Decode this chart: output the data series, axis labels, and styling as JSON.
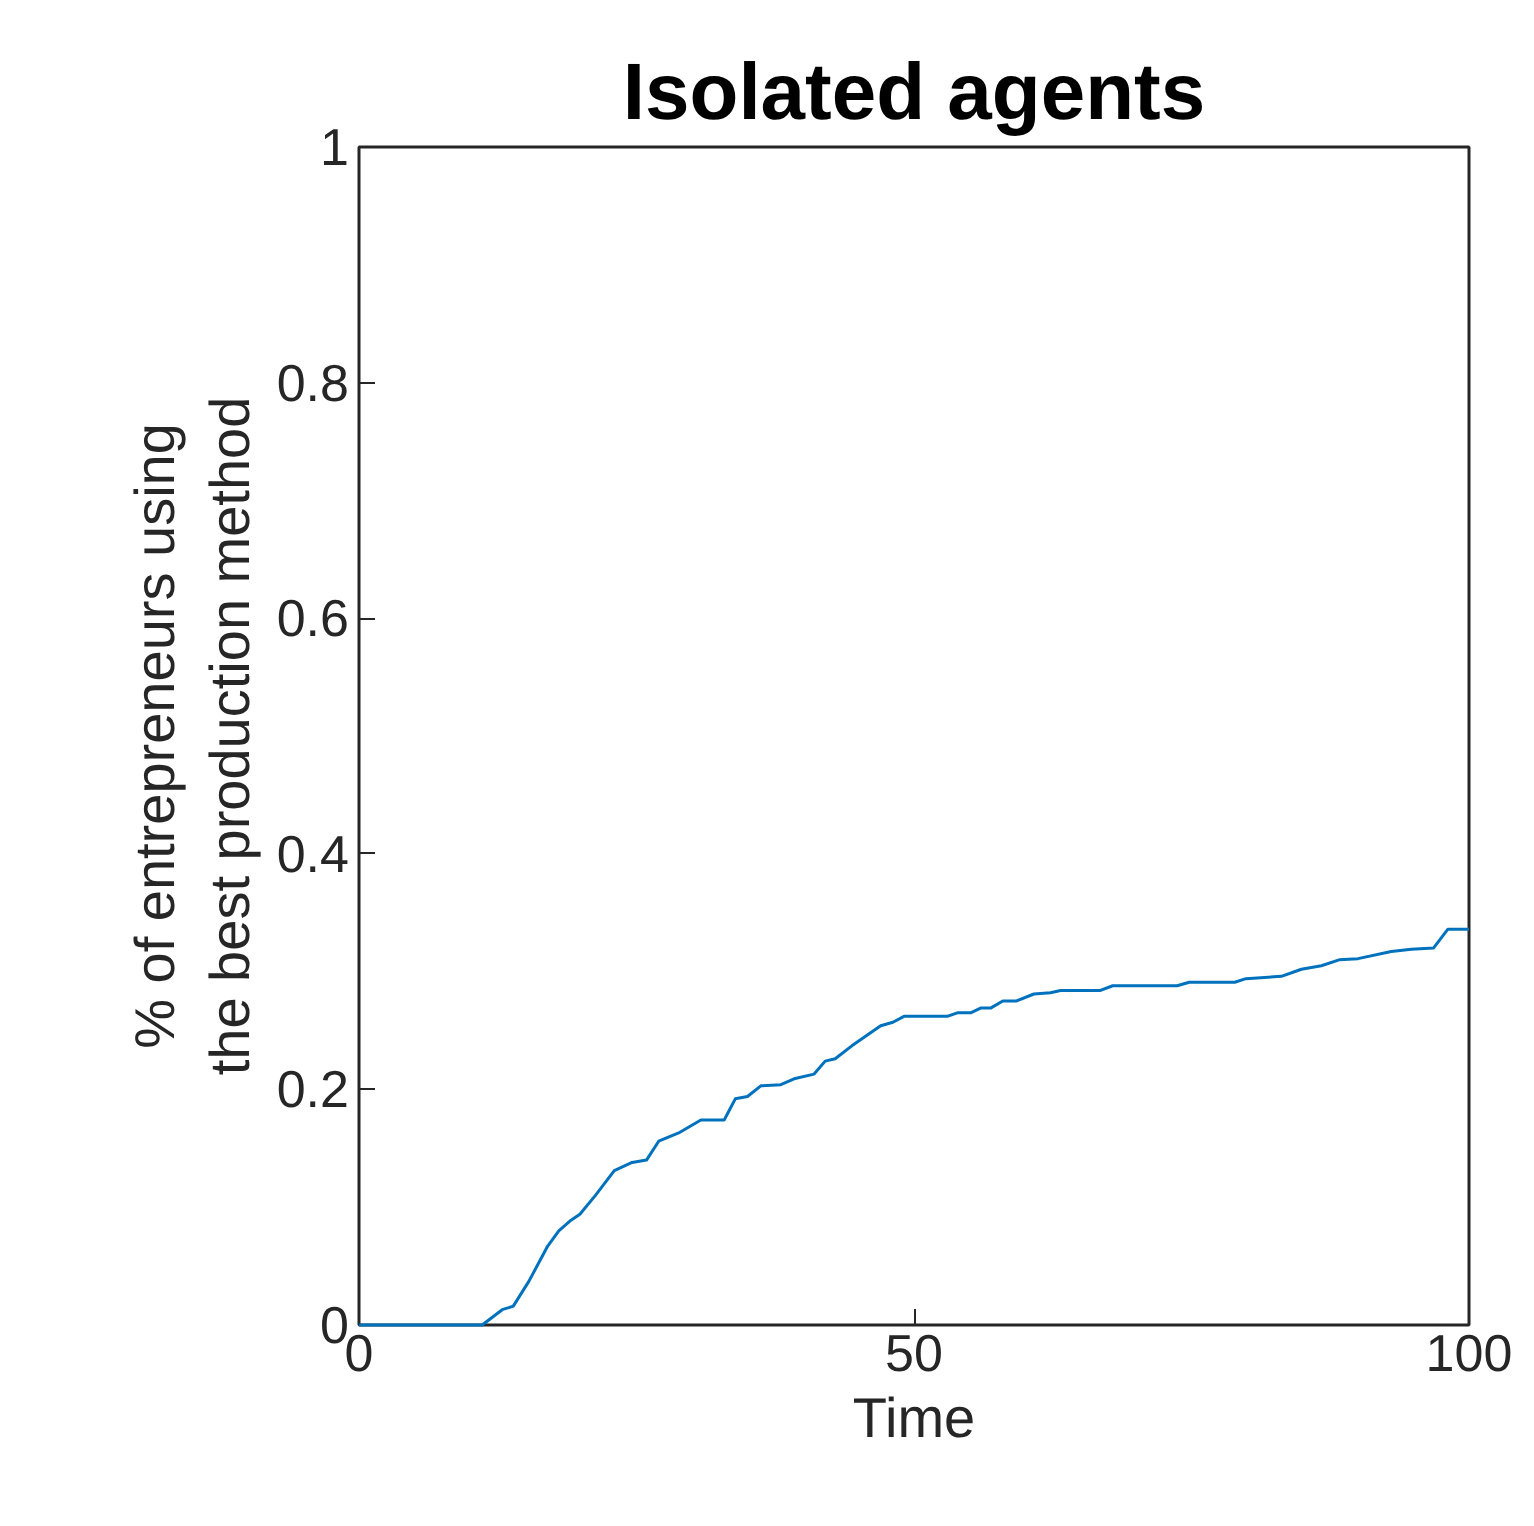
{
  "chart_data": {
    "type": "line",
    "title": "Isolated agents",
    "xlabel": "Time",
    "ylabel": "% of entrepreneurs using the best production method",
    "xlim": [
      0,
      100
    ],
    "ylim": [
      0,
      1
    ],
    "xticks": [
      0,
      50,
      100
    ],
    "yticks": [
      0,
      0.2,
      0.4,
      0.6,
      0.8,
      1
    ],
    "series": [
      {
        "color": "#0072bd",
        "x": [
          0,
          11.1,
          12.9,
          13.9,
          15.3,
          17.0,
          18.0,
          19.1,
          19.9,
          21.3,
          23.0,
          24.6,
          25.9,
          27.0,
          28.8,
          30.8,
          32.9,
          33.9,
          35.0,
          36.2,
          38.0,
          39.2,
          41.0,
          42.0,
          42.9,
          44.4,
          47.0,
          48.1,
          49.1,
          53.0,
          53.9,
          55.1,
          56.0,
          56.9,
          58.0,
          59.2,
          60.8,
          62.3,
          63.2,
          66.8,
          67.9,
          73.7,
          74.8,
          78.9,
          79.9,
          83.1,
          84.9,
          86.7,
          88.3,
          90.0,
          93.0,
          94.8,
          96.8,
          98.1,
          100
        ],
        "values": [
          0,
          0,
          0.013,
          0.016,
          0.037,
          0.067,
          0.08,
          0.089,
          0.094,
          0.11,
          0.131,
          0.138,
          0.14,
          0.156,
          0.163,
          0.174,
          0.174,
          0.192,
          0.194,
          0.203,
          0.204,
          0.209,
          0.213,
          0.224,
          0.226,
          0.237,
          0.254,
          0.257,
          0.262,
          0.262,
          0.265,
          0.265,
          0.269,
          0.269,
          0.275,
          0.275,
          0.281,
          0.282,
          0.284,
          0.284,
          0.288,
          0.288,
          0.291,
          0.291,
          0.294,
          0.296,
          0.302,
          0.305,
          0.31,
          0.311,
          0.317,
          0.319,
          0.32,
          0.336,
          0.336
        ]
      }
    ]
  }
}
